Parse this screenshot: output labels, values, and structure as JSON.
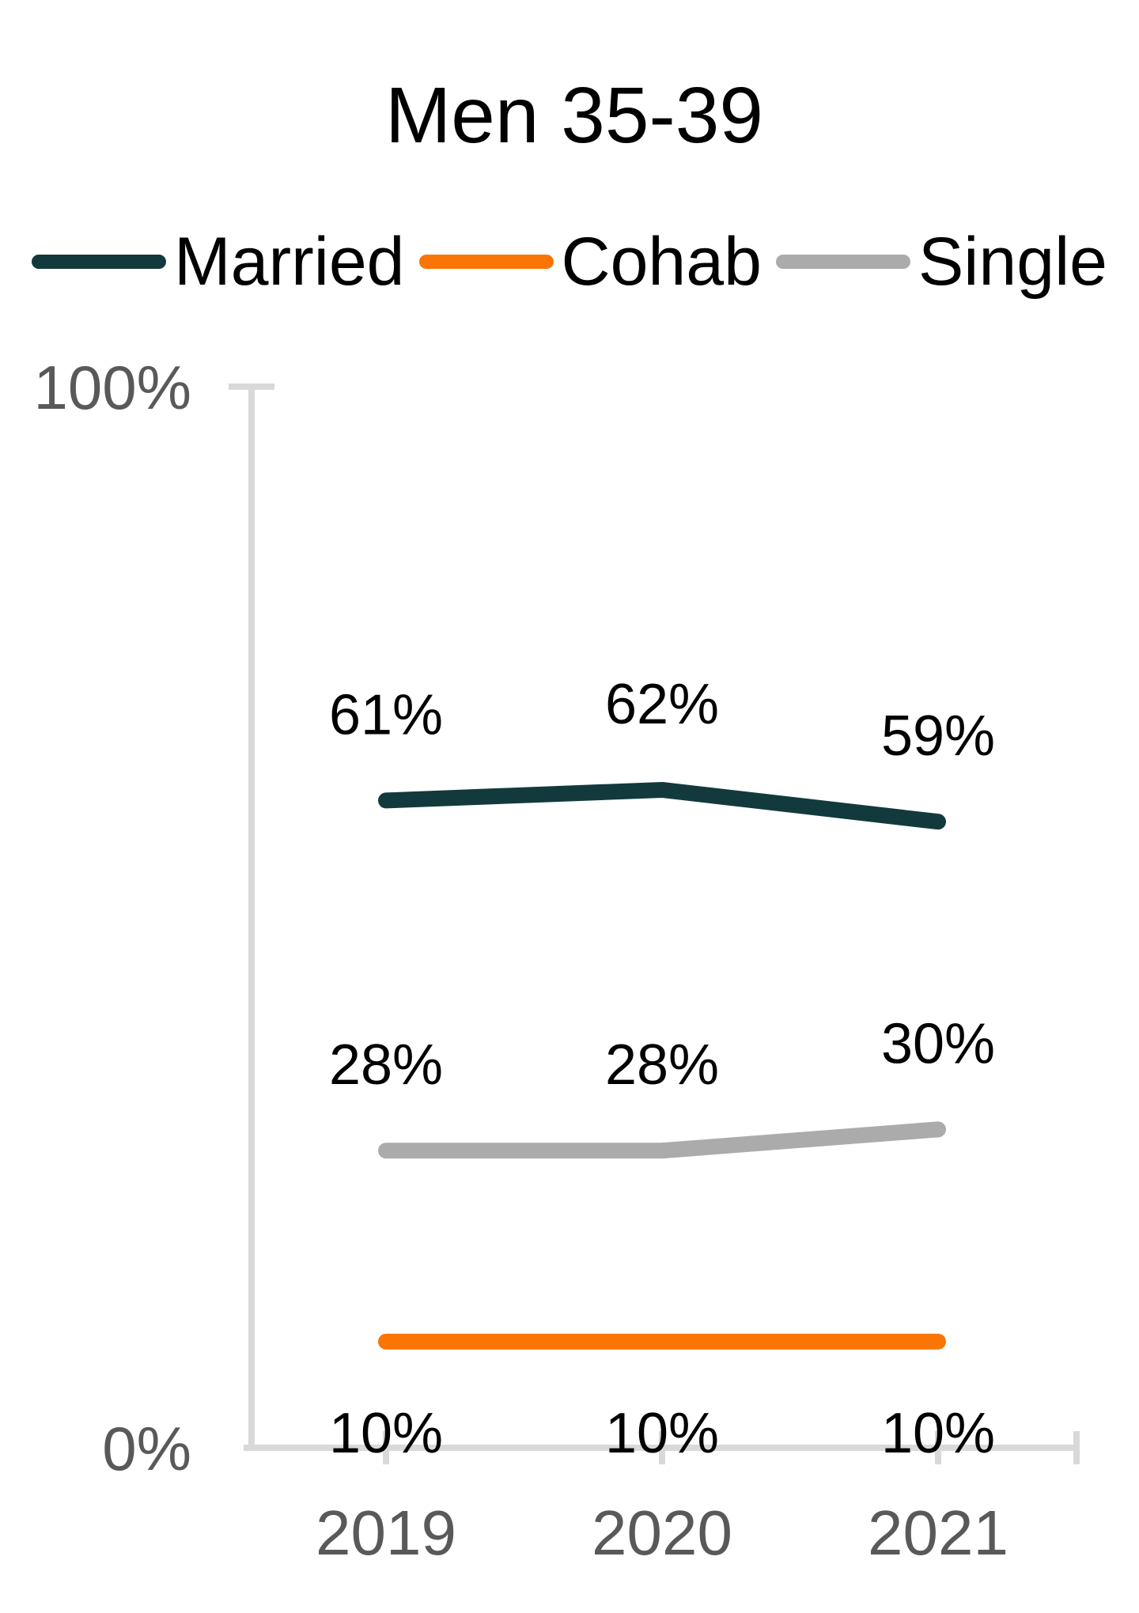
{
  "page": {
    "background": "#ffffff"
  },
  "chart_data": {
    "type": "line",
    "title": "Men 35-39",
    "categories": [
      "2019",
      "2020",
      "2021"
    ],
    "series": [
      {
        "name": "Married",
        "color": "#123A3D",
        "values": [
          61,
          62,
          59
        ],
        "labels": [
          "61%",
          "62%",
          "59%"
        ],
        "data_label_position": "above"
      },
      {
        "name": "Cohab",
        "color": "#FA7506",
        "values": [
          10,
          10,
          10
        ],
        "labels": [
          "10%",
          "10%",
          "10%"
        ],
        "data_label_position": "below"
      },
      {
        "name": "Single",
        "color": "#ABABAB",
        "values": [
          28,
          28,
          30
        ],
        "labels": [
          "28%",
          "28%",
          "30%"
        ],
        "data_label_position": "above"
      }
    ],
    "y_axis": {
      "min": 0,
      "max": 100,
      "ticks": [
        {
          "label": "100%",
          "value": 100
        },
        {
          "label": "0%",
          "value": 0
        }
      ]
    },
    "legend_position": "top",
    "legend_order": [
      "Married",
      "Cohab",
      "Single"
    ],
    "grid": false,
    "axis_color": "#D9D9D9",
    "axis_label_color": "#595959",
    "data_label_color": "#000000",
    "title_color": "#000000"
  }
}
